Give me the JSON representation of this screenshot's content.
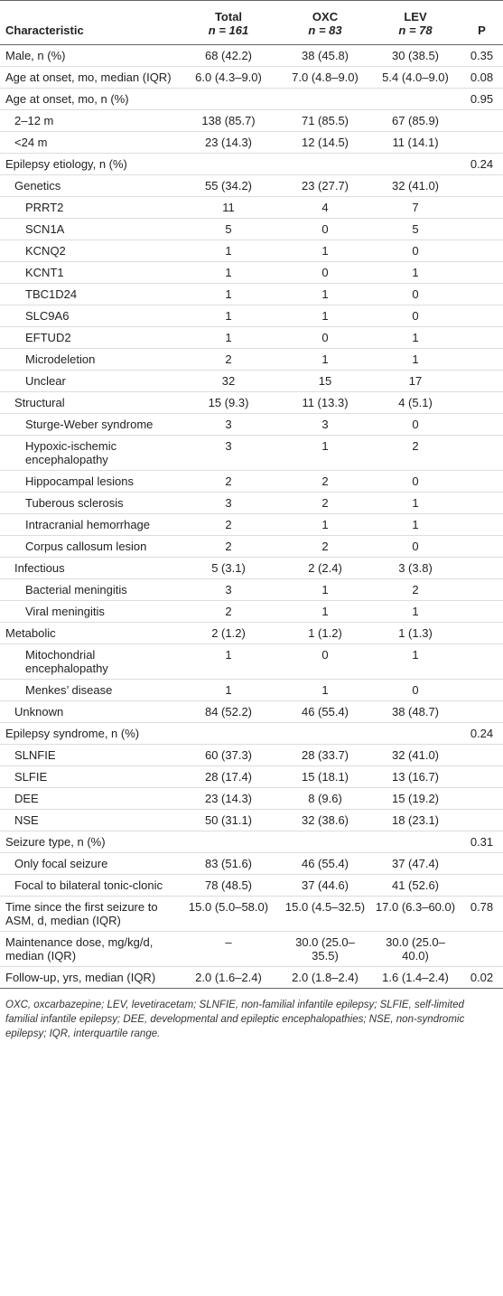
{
  "table": {
    "header": [
      {
        "title": "Characteristic"
      },
      {
        "title": "Total",
        "sub": "n = 161"
      },
      {
        "title": "OXC",
        "sub": "n = 83"
      },
      {
        "title": "LEV",
        "sub": "n = 78"
      },
      {
        "title": "P"
      }
    ],
    "rows": [
      {
        "label": "Male, n (%)",
        "total": "68 (42.2)",
        "oxc": "38 (45.8)",
        "lev": "30 (38.5)",
        "p": "0.35"
      },
      {
        "label": "Age at onset, mo, median (IQR)",
        "total": "6.0 (4.3–9.0)",
        "oxc": "7.0 (4.8–9.0)",
        "lev": "5.4 (4.0–9.0)",
        "p": "0.08"
      },
      {
        "label": "Age at onset, mo, n (%)",
        "p": "0.95"
      },
      {
        "label": "2–12 m",
        "total": "138 (85.7)",
        "oxc": "71 (85.5)",
        "lev": "67 (85.9)"
      },
      {
        "label": "<24 m",
        "total": "23 (14.3)",
        "oxc": "12 (14.5)",
        "lev": "11 (14.1)"
      },
      {
        "label": "Epilepsy etiology, n (%)",
        "p": "0.24"
      },
      {
        "label": "Genetics",
        "total": "55 (34.2)",
        "oxc": "23 (27.7)",
        "lev": "32 (41.0)"
      },
      {
        "label": "PRRT2",
        "total": "11",
        "oxc": "4",
        "lev": "7"
      },
      {
        "label": "SCN1A",
        "total": "5",
        "oxc": "0",
        "lev": "5"
      },
      {
        "label": "KCNQ2",
        "total": "1",
        "oxc": "1",
        "lev": "0"
      },
      {
        "label": "KCNT1",
        "total": "1",
        "oxc": "0",
        "lev": "1"
      },
      {
        "label": "TBC1D24",
        "total": "1",
        "oxc": "1",
        "lev": "0"
      },
      {
        "label": "SLC9A6",
        "total": "1",
        "oxc": "1",
        "lev": "0"
      },
      {
        "label": "EFTUD2",
        "total": "1",
        "oxc": "0",
        "lev": "1"
      },
      {
        "label": "Microdeletion",
        "total": "2",
        "oxc": "1",
        "lev": "1"
      },
      {
        "label": "Unclear",
        "total": "32",
        "oxc": "15",
        "lev": "17"
      },
      {
        "label": "Structural",
        "total": "15 (9.3)",
        "oxc": "11 (13.3)",
        "lev": "4 (5.1)"
      },
      {
        "label": "Sturge-Weber syndrome",
        "total": "3",
        "oxc": "3",
        "lev": "0"
      },
      {
        "label": "Hypoxic-ischemic encephalopathy",
        "total": "3",
        "oxc": "1",
        "lev": "2"
      },
      {
        "label": "Hippocampal lesions",
        "total": "2",
        "oxc": "2",
        "lev": "0"
      },
      {
        "label": "Tuberous sclerosis",
        "total": "3",
        "oxc": "2",
        "lev": "1"
      },
      {
        "label": "Intracranial hemorrhage",
        "total": "2",
        "oxc": "1",
        "lev": "1"
      },
      {
        "label": "Corpus callosum lesion",
        "total": "2",
        "oxc": "2",
        "lev": "0"
      },
      {
        "label": "Infectious",
        "total": "5 (3.1)",
        "oxc": "2 (2.4)",
        "lev": "3 (3.8)"
      },
      {
        "label": "Bacterial meningitis",
        "total": "3",
        "oxc": "1",
        "lev": "2"
      },
      {
        "label": "Viral meningitis",
        "total": "2",
        "oxc": "1",
        "lev": "1"
      },
      {
        "label": "Metabolic",
        "total": "2 (1.2)",
        "oxc": "1 (1.2)",
        "lev": "1 (1.3)"
      },
      {
        "label": "Mitochondrial encephalopathy",
        "total": "1",
        "oxc": "0",
        "lev": "1"
      },
      {
        "label": "Menkes’ disease",
        "total": "1",
        "oxc": "1",
        "lev": "0"
      },
      {
        "label": "Unknown",
        "total": "84 (52.2)",
        "oxc": "46 (55.4)",
        "lev": "38 (48.7)"
      },
      {
        "label": "Epilepsy syndrome, n (%)",
        "p": "0.24"
      },
      {
        "label": "SLNFIE",
        "total": "60 (37.3)",
        "oxc": "28 (33.7)",
        "lev": "32 (41.0)"
      },
      {
        "label": "SLFIE",
        "total": "28 (17.4)",
        "oxc": "15 (18.1)",
        "lev": "13 (16.7)"
      },
      {
        "label": "DEE",
        "total": "23 (14.3)",
        "oxc": "8 (9.6)",
        "lev": "15 (19.2)"
      },
      {
        "label": "NSE",
        "total": "50 (31.1)",
        "oxc": "32 (38.6)",
        "lev": "18 (23.1)"
      },
      {
        "label": "Seizure type, n (%)",
        "p": "0.31"
      },
      {
        "label": "Only focal seizure",
        "total": "83 (51.6)",
        "oxc": "46 (55.4)",
        "lev": "37 (47.4)"
      },
      {
        "label": "Focal to bilateral tonic-clonic",
        "total": "78 (48.5)",
        "oxc": "37 (44.6)",
        "lev": "41 (52.6)"
      },
      {
        "label": "Time since the first seizure to ASM, d, median (IQR)",
        "total": "15.0 (5.0–58.0)",
        "oxc": "15.0 (4.5–32.5)",
        "lev": "17.0 (6.3–60.0)",
        "p": "0.78"
      },
      {
        "label": "Maintenance dose, mg/kg/d, median (IQR)",
        "total": "–",
        "oxc": "30.0 (25.0–35.5)",
        "lev": "30.0 (25.0–40.0)"
      },
      {
        "label": "Follow-up, yrs, median (IQR)",
        "total": "2.0 (1.6–2.4)",
        "oxc": "2.0 (1.8–2.4)",
        "lev": "1.6 (1.4–2.4)",
        "p": "0.02"
      }
    ],
    "footnote": "OXC, oxcarbazepine; LEV, levetiracetam; SLNFIE, non-familial infantile epilepsy; SLFIE, self-limited familial infantile epilepsy; DEE, developmental and epileptic encephalopathies; NSE, non-syndromic epilepsy; IQR, interquartile range."
  }
}
